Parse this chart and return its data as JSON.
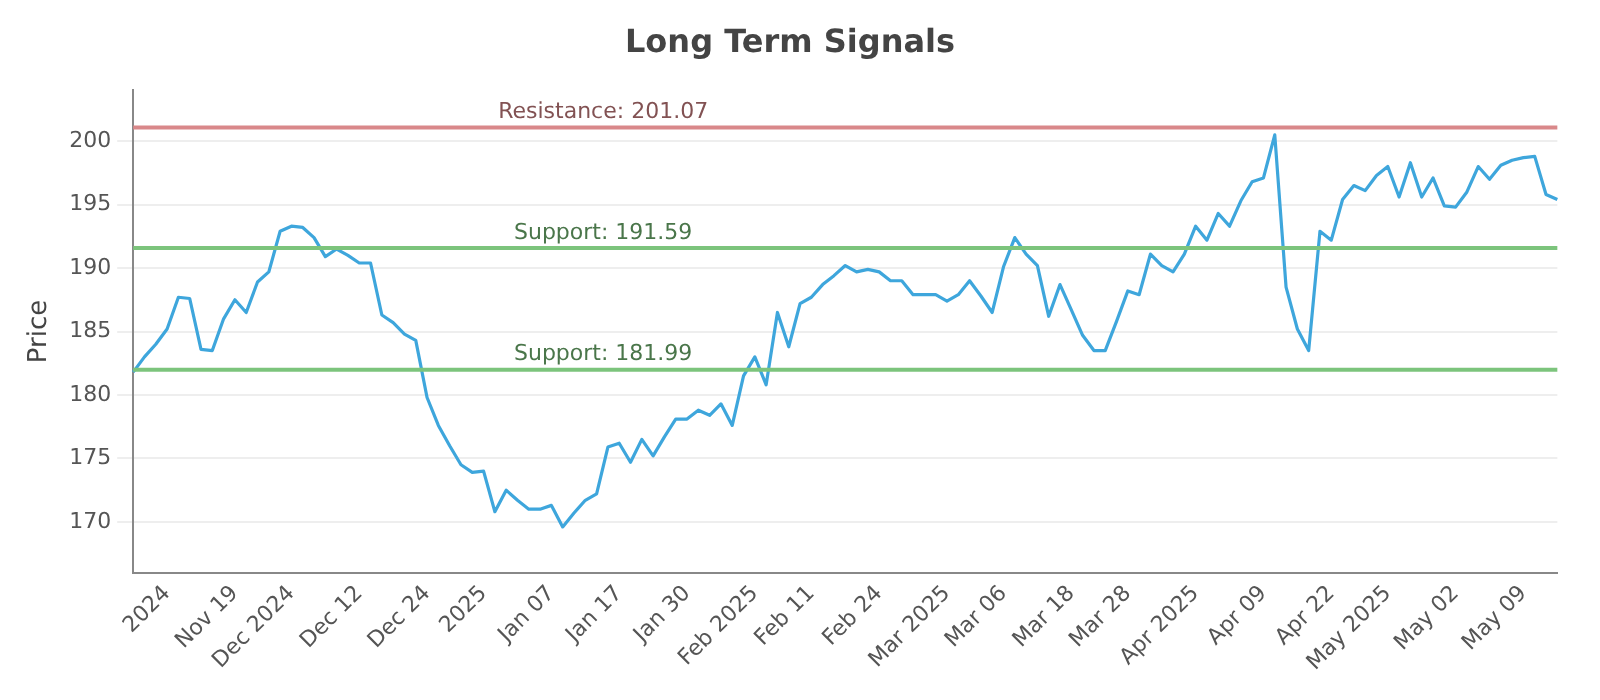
{
  "chart_data": {
    "type": "line",
    "title": "Long Term Signals",
    "ylabel": "Price",
    "categories": [
      null,
      null,
      null,
      "2024",
      null,
      null,
      null,
      null,
      null,
      "Nov 19",
      null,
      null,
      null,
      null,
      "Dec 2024",
      null,
      null,
      null,
      null,
      null,
      "Dec 12",
      null,
      null,
      null,
      null,
      null,
      "Dec 24",
      null,
      null,
      null,
      null,
      "2025",
      null,
      null,
      null,
      null,
      null,
      "Jan 07",
      null,
      null,
      null,
      null,
      null,
      "Jan 17",
      null,
      null,
      null,
      null,
      null,
      "Jan 30",
      null,
      null,
      null,
      null,
      null,
      "Feb 2025",
      null,
      null,
      null,
      null,
      "Feb 11",
      null,
      null,
      null,
      null,
      null,
      "Feb 24",
      null,
      null,
      null,
      null,
      null,
      "Mar 2025",
      null,
      null,
      null,
      null,
      "Mar 06",
      null,
      null,
      null,
      null,
      null,
      "Mar 18",
      null,
      null,
      null,
      null,
      "Mar 28",
      null,
      null,
      null,
      null,
      null,
      "Apr 2025",
      null,
      null,
      null,
      null,
      null,
      "Apr 09",
      null,
      null,
      null,
      null,
      null,
      "Apr 22",
      null,
      null,
      null,
      null,
      "May 2025",
      null,
      null,
      null,
      null,
      null,
      "May 02",
      null,
      null,
      null,
      null,
      null,
      "May 09",
      null,
      null,
      null
    ],
    "series": [
      {
        "color": "#3ea6dc",
        "values": [
          181.8,
          183.0,
          184.0,
          185.2,
          187.7,
          187.6,
          183.6,
          183.5,
          186.0,
          187.5,
          186.5,
          188.9,
          189.7,
          192.9,
          193.3,
          193.2,
          192.4,
          190.9,
          191.5,
          191.0,
          190.4,
          190.4,
          186.3,
          185.7,
          184.8,
          184.3,
          179.8,
          177.6,
          176.0,
          174.5,
          173.9,
          174.0,
          170.8,
          172.5,
          171.7,
          171.0,
          171.0,
          171.3,
          169.6,
          170.7,
          171.7,
          172.2,
          175.9,
          176.2,
          174.7,
          176.5,
          175.2,
          176.7,
          178.1,
          178.1,
          178.8,
          178.4,
          179.3,
          177.6,
          181.5,
          183.0,
          180.8,
          186.5,
          183.8,
          187.2,
          187.7,
          188.7,
          189.4,
          190.2,
          189.7,
          189.9,
          189.7,
          189.0,
          189.0,
          187.9,
          187.9,
          187.9,
          187.4,
          187.9,
          189.0,
          187.8,
          186.5,
          190.1,
          192.4,
          191.1,
          190.2,
          186.2,
          188.7,
          186.7,
          184.7,
          183.5,
          183.5,
          185.8,
          188.2,
          187.9,
          191.1,
          190.2,
          189.7,
          191.1,
          193.3,
          192.2,
          194.3,
          193.3,
          195.3,
          196.8,
          197.1,
          200.5,
          188.5,
          185.2,
          183.5,
          192.9,
          192.2,
          195.4,
          196.5,
          196.1,
          197.3,
          198.0,
          195.6,
          198.3,
          195.6,
          197.1,
          194.9,
          194.8,
          196.0,
          198.0,
          197.0,
          198.1,
          198.5,
          198.7,
          198.8,
          195.8,
          195.4
        ]
      }
    ],
    "ylim": [
      166,
      204
    ],
    "yticks": [
      170,
      175,
      180,
      185,
      190,
      195,
      200
    ],
    "grid": "y",
    "legend": false,
    "marker": "none",
    "line_style": "solid",
    "ref_lines": [
      {
        "axis": "y",
        "value": 201.07,
        "label": "Resistance: 201.07",
        "color": "#d9888a"
      },
      {
        "axis": "y",
        "value": 191.59,
        "label": "Support: 191.59",
        "color": "#7cc47c"
      },
      {
        "axis": "y",
        "value": 181.99,
        "label": "Support: 181.99",
        "color": "#7cc47c"
      }
    ]
  }
}
